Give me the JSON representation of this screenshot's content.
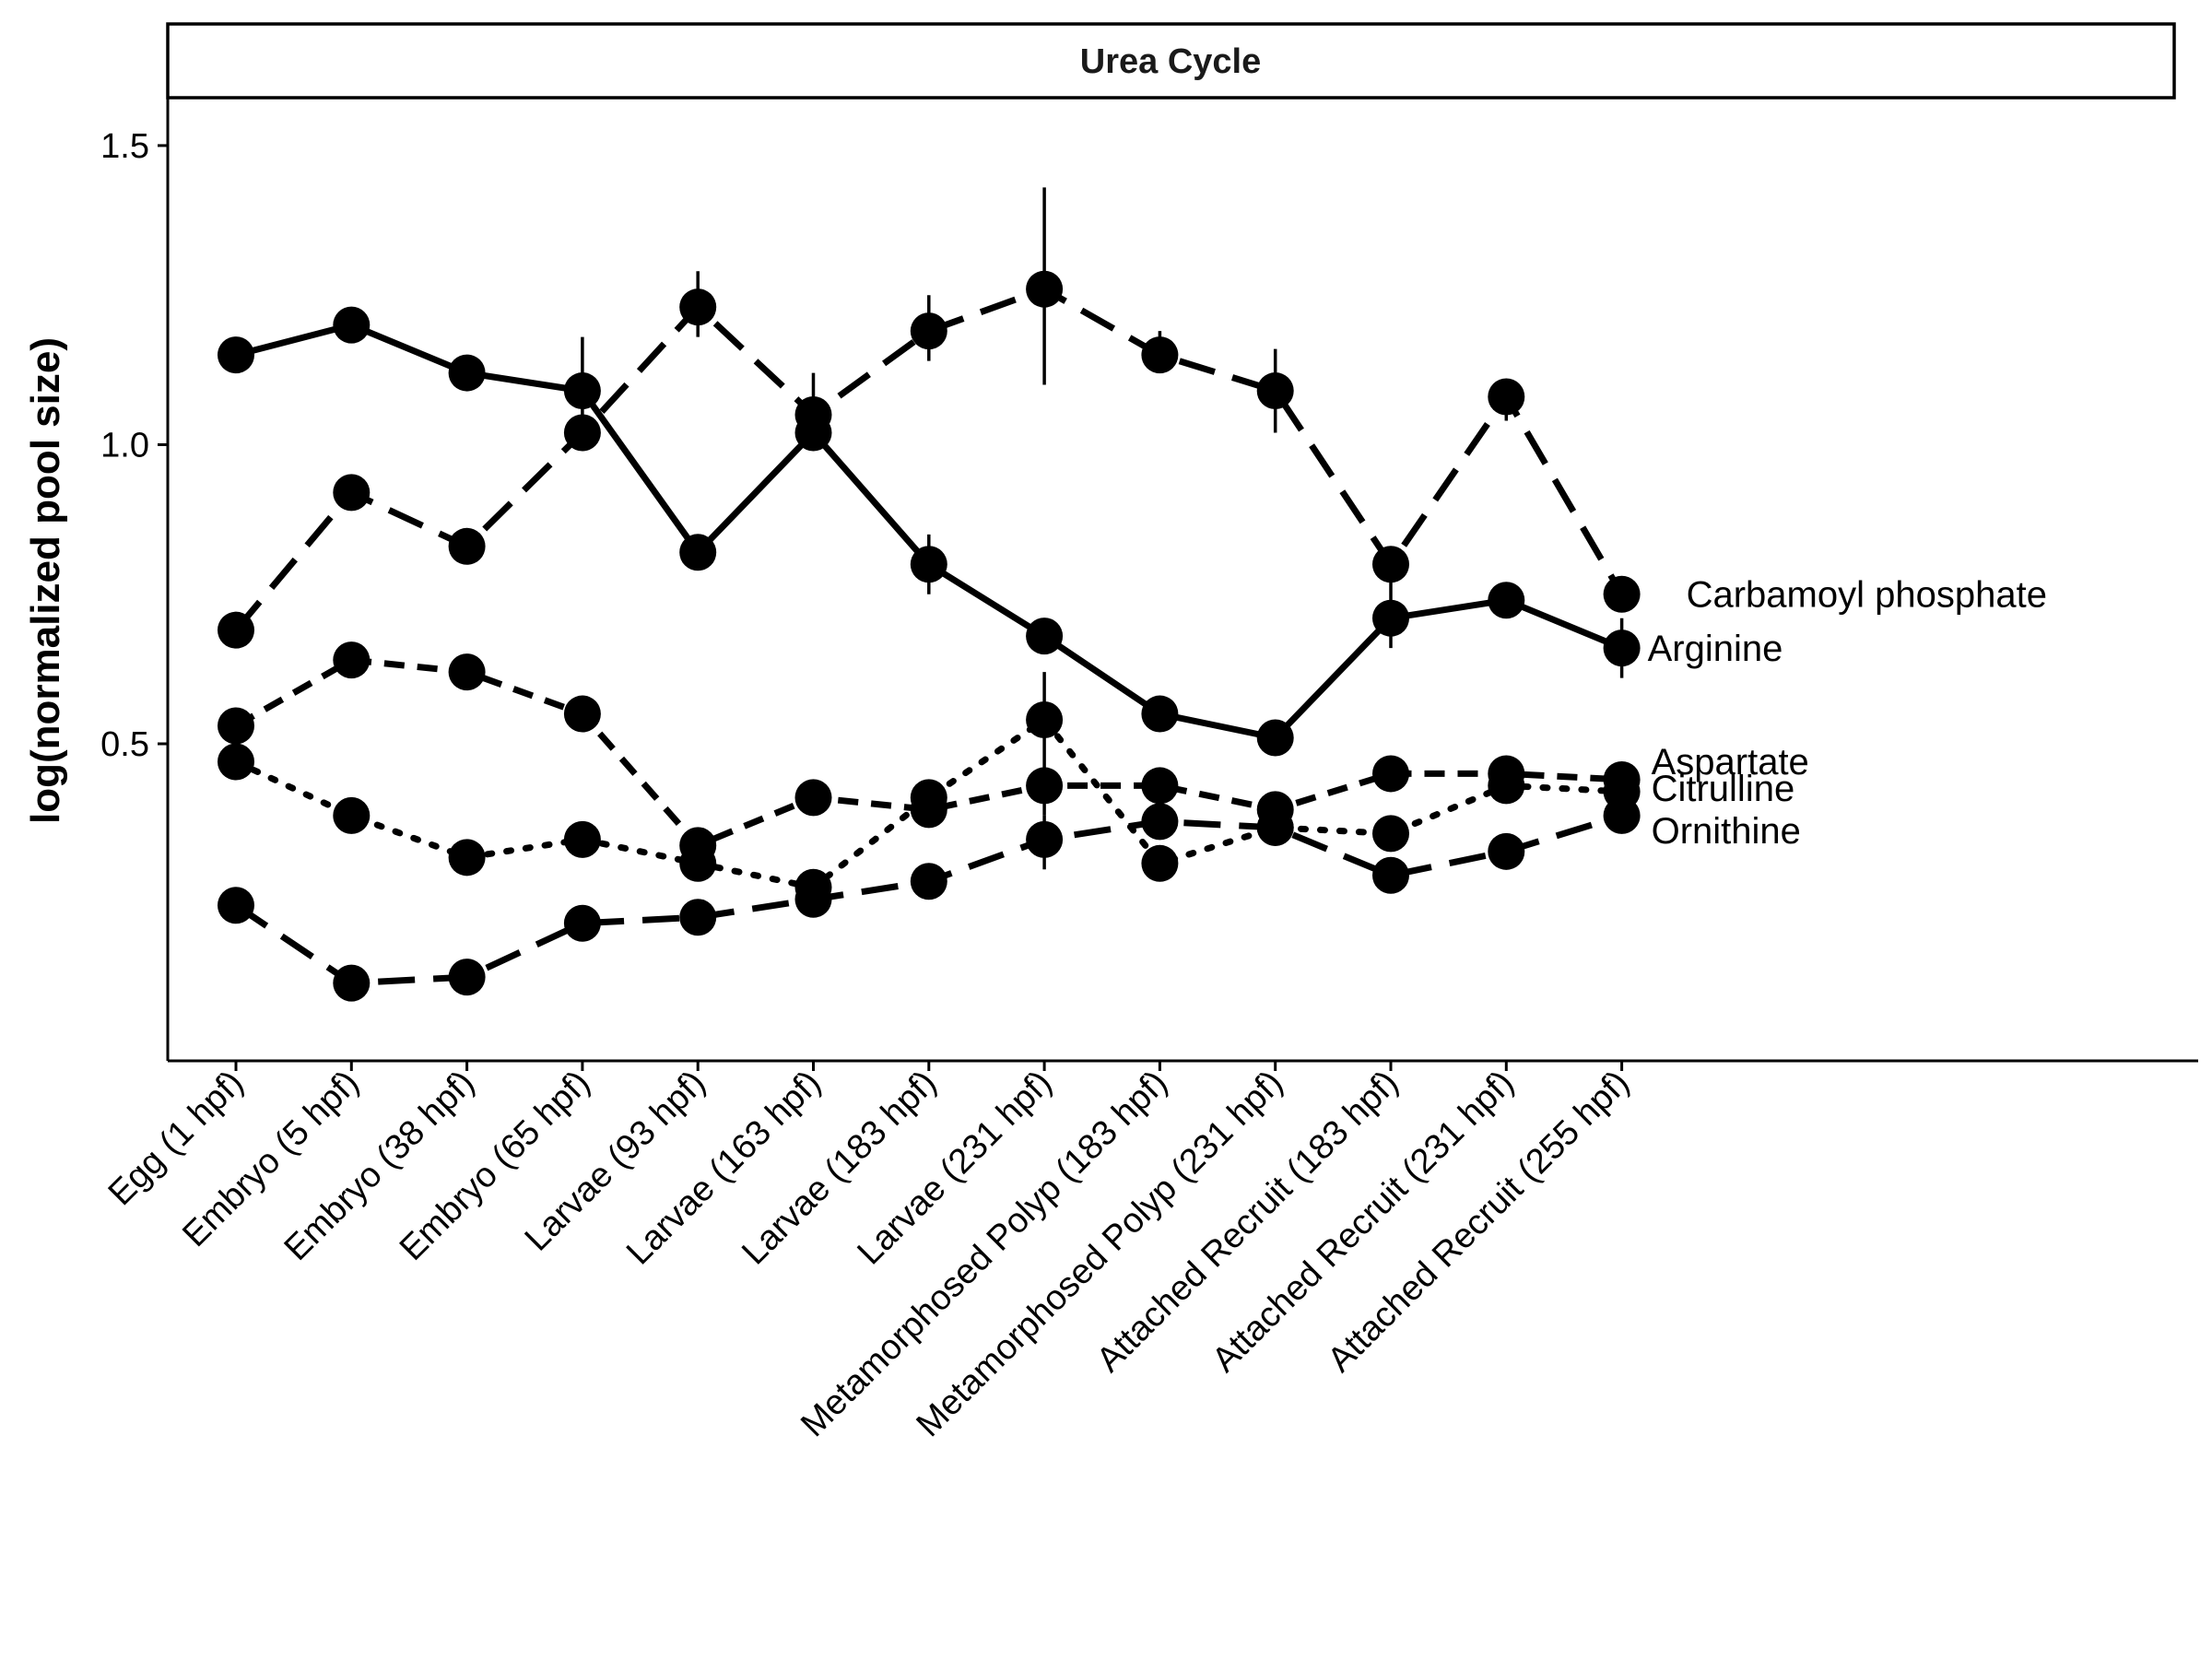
{
  "chart_data": {
    "type": "line",
    "title": "Urea Cycle",
    "xlabel": "",
    "ylabel": "log(normalized pool size)",
    "categories": [
      "Egg (1 hpf)",
      "Embryo (5 hpf)",
      "Embryo (38 hpf)",
      "Embryo (65 hpf)",
      "Larvae (93 hpf)",
      "Larvae (163 hpf)",
      "Larvae (183 hpf)",
      "Larvae (231 hpf)",
      "Metamorphosed Polyp (183 hpf)",
      "Metamorphosed Polyp (231 hpf)",
      "Attached Recruit (183 hpf)",
      "Attached Recruit (231 hpf)",
      "Attached Recruit (255 hpf)"
    ],
    "ylim": [
      -0.03,
      1.58
    ],
    "yticks": [
      0.5,
      1.0,
      1.5
    ],
    "ytick_labels": [
      "0.5",
      "1.0",
      "1.5"
    ],
    "grid": false,
    "legend": "direct labels at right end of each line",
    "series": [
      {
        "name": "Carbamoyl phosphate",
        "dash": "long-dash",
        "values": [
          0.69,
          0.92,
          0.83,
          1.02,
          1.23,
          1.05,
          1.19,
          1.26,
          1.15,
          1.09,
          0.8,
          1.08,
          0.75
        ],
        "errors": [
          null,
          null,
          null,
          null,
          [
            1.18,
            1.29
          ],
          [
            0.99,
            1.12
          ],
          [
            1.14,
            1.25
          ],
          [
            1.1,
            1.43
          ],
          [
            1.12,
            1.19
          ],
          [
            1.02,
            1.16
          ],
          null,
          [
            1.04,
            1.11
          ],
          null
        ]
      },
      {
        "name": "Arginine",
        "dash": "solid",
        "values": [
          1.15,
          1.2,
          1.12,
          1.09,
          0.82,
          1.02,
          0.8,
          0.68,
          0.55,
          0.51,
          0.71,
          0.74,
          0.66
        ],
        "errors": [
          null,
          null,
          null,
          [
            1.0,
            1.18
          ],
          null,
          null,
          [
            0.75,
            0.85
          ],
          null,
          null,
          null,
          [
            0.66,
            0.77
          ],
          null,
          [
            0.61,
            0.71
          ]
        ]
      },
      {
        "name": "Aspartate",
        "dash": "dashed",
        "values": [
          0.53,
          0.64,
          0.62,
          0.55,
          0.33,
          0.41,
          0.39,
          0.43,
          0.43,
          0.39,
          0.45,
          0.45,
          0.44
        ],
        "errors": [
          null,
          null,
          null,
          null,
          null,
          null,
          null,
          null,
          null,
          null,
          null,
          null,
          null
        ]
      },
      {
        "name": "Citrulline",
        "dash": "dotted",
        "values": [
          0.47,
          0.38,
          0.31,
          0.34,
          0.3,
          0.26,
          0.41,
          0.54,
          0.3,
          0.36,
          0.35,
          0.43,
          0.42
        ],
        "errors": [
          null,
          null,
          null,
          null,
          null,
          null,
          null,
          [
            0.38,
            0.62
          ],
          null,
          null,
          null,
          null,
          null
        ]
      },
      {
        "name": "Ornithine",
        "dash": "long-dash",
        "values": [
          0.23,
          0.1,
          0.11,
          0.2,
          0.21,
          0.24,
          0.27,
          0.34,
          0.37,
          0.36,
          0.28,
          0.32,
          0.38
        ],
        "errors": [
          null,
          null,
          null,
          null,
          null,
          null,
          null,
          [
            0.29,
            0.38
          ],
          null,
          null,
          null,
          null,
          null
        ]
      }
    ]
  }
}
